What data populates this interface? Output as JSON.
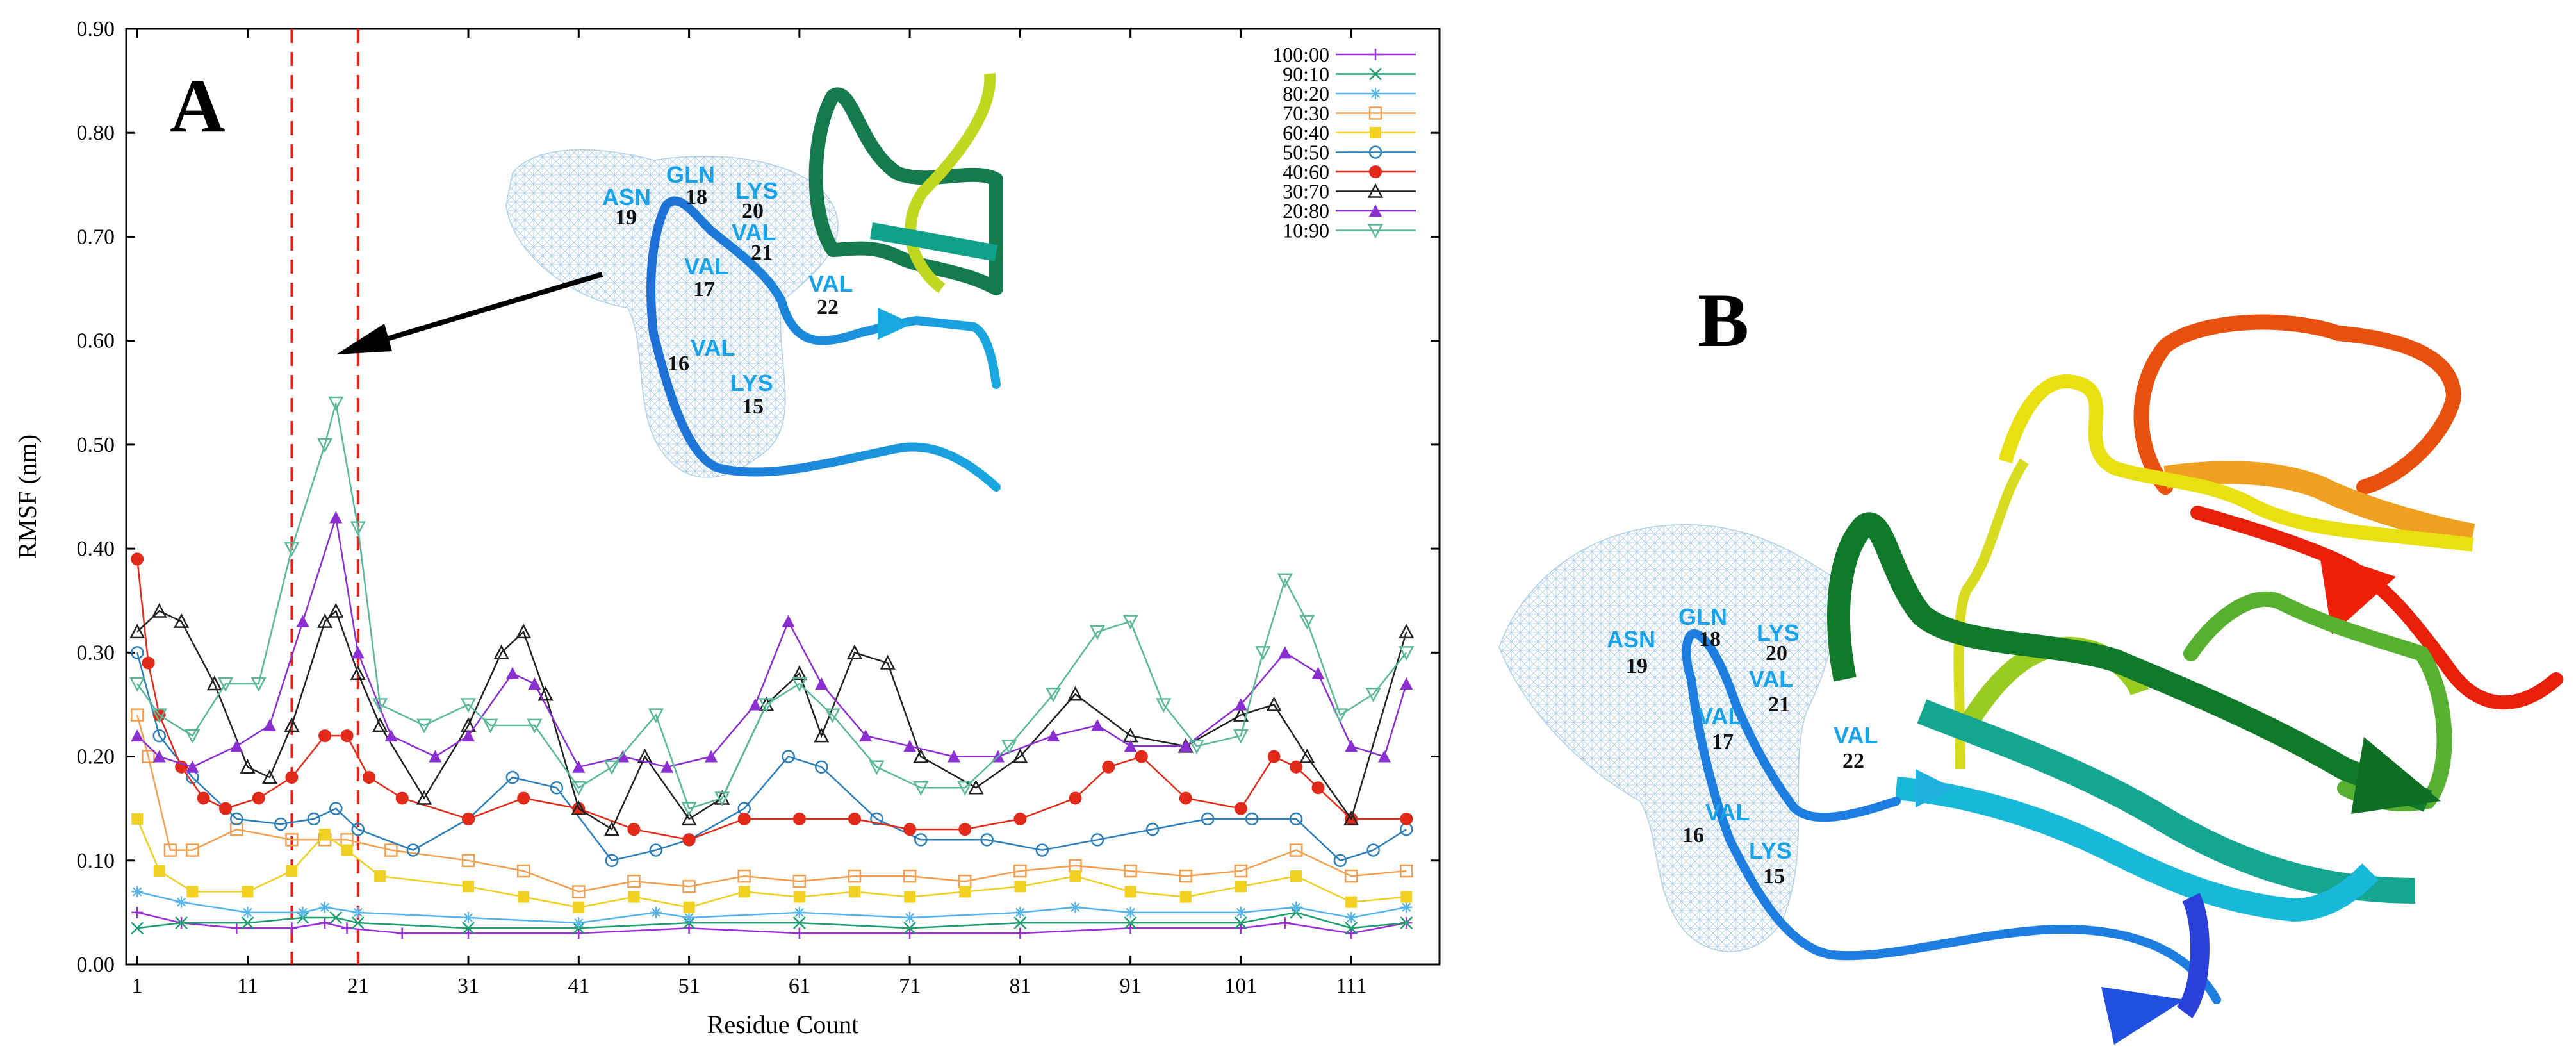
{
  "chart_data": {
    "type": "line",
    "title": "",
    "xlabel": "Residue Count",
    "ylabel": "RMSF (nm)",
    "xlim": [
      0,
      119
    ],
    "ylim": [
      0,
      0.9
    ],
    "xticks": [
      1,
      11,
      21,
      31,
      41,
      51,
      61,
      71,
      81,
      91,
      101,
      111
    ],
    "yticks": [
      "0.00",
      "0.10",
      "0.20",
      "0.30",
      "0.40",
      "0.50",
      "0.60",
      "0.70",
      "0.80",
      "0.90"
    ],
    "ytick_values": [
      0,
      0.1,
      0.2,
      0.3,
      0.4,
      0.5,
      0.6,
      0.7,
      0.8,
      0.9
    ],
    "grid": false,
    "legend_position": "top-right",
    "highlight_lines": [
      15,
      21
    ],
    "series": [
      {
        "name": "100:00",
        "color": "#9b30d9",
        "marker": "plus",
        "points": [
          [
            1,
            0.05
          ],
          [
            5,
            0.04
          ],
          [
            10,
            0.035
          ],
          [
            15,
            0.035
          ],
          [
            18,
            0.04
          ],
          [
            20,
            0.035
          ],
          [
            25,
            0.03
          ],
          [
            31,
            0.03
          ],
          [
            41,
            0.03
          ],
          [
            51,
            0.035
          ],
          [
            61,
            0.03
          ],
          [
            71,
            0.03
          ],
          [
            81,
            0.03
          ],
          [
            91,
            0.035
          ],
          [
            101,
            0.035
          ],
          [
            105,
            0.04
          ],
          [
            111,
            0.03
          ],
          [
            116,
            0.04
          ]
        ]
      },
      {
        "name": "90:10",
        "color": "#1f9e6e",
        "marker": "cross",
        "points": [
          [
            1,
            0.035
          ],
          [
            5,
            0.04
          ],
          [
            11,
            0.04
          ],
          [
            16,
            0.045
          ],
          [
            19,
            0.045
          ],
          [
            21,
            0.04
          ],
          [
            31,
            0.035
          ],
          [
            41,
            0.035
          ],
          [
            51,
            0.04
          ],
          [
            61,
            0.04
          ],
          [
            71,
            0.035
          ],
          [
            81,
            0.04
          ],
          [
            91,
            0.04
          ],
          [
            101,
            0.04
          ],
          [
            106,
            0.05
          ],
          [
            111,
            0.035
          ],
          [
            116,
            0.04
          ]
        ]
      },
      {
        "name": "80:20",
        "color": "#56b4e9",
        "marker": "star",
        "points": [
          [
            1,
            0.07
          ],
          [
            5,
            0.06
          ],
          [
            11,
            0.05
          ],
          [
            16,
            0.05
          ],
          [
            18,
            0.055
          ],
          [
            21,
            0.05
          ],
          [
            31,
            0.045
          ],
          [
            41,
            0.04
          ],
          [
            48,
            0.05
          ],
          [
            51,
            0.045
          ],
          [
            61,
            0.05
          ],
          [
            71,
            0.045
          ],
          [
            81,
            0.05
          ],
          [
            86,
            0.055
          ],
          [
            91,
            0.05
          ],
          [
            101,
            0.05
          ],
          [
            106,
            0.055
          ],
          [
            111,
            0.045
          ],
          [
            116,
            0.055
          ]
        ]
      },
      {
        "name": "70:30",
        "color": "#f0a050",
        "marker": "open-square",
        "points": [
          [
            1,
            0.24
          ],
          [
            2,
            0.2
          ],
          [
            4,
            0.11
          ],
          [
            6,
            0.11
          ],
          [
            10,
            0.13
          ],
          [
            15,
            0.12
          ],
          [
            18,
            0.12
          ],
          [
            20,
            0.12
          ],
          [
            24,
            0.11
          ],
          [
            31,
            0.1
          ],
          [
            36,
            0.09
          ],
          [
            41,
            0.07
          ],
          [
            46,
            0.08
          ],
          [
            51,
            0.075
          ],
          [
            56,
            0.085
          ],
          [
            61,
            0.08
          ],
          [
            66,
            0.085
          ],
          [
            71,
            0.085
          ],
          [
            76,
            0.08
          ],
          [
            81,
            0.09
          ],
          [
            86,
            0.095
          ],
          [
            91,
            0.09
          ],
          [
            96,
            0.085
          ],
          [
            101,
            0.09
          ],
          [
            106,
            0.11
          ],
          [
            111,
            0.085
          ],
          [
            116,
            0.09
          ]
        ]
      },
      {
        "name": "60:40",
        "color": "#f0d020",
        "marker": "filled-square",
        "points": [
          [
            1,
            0.14
          ],
          [
            3,
            0.09
          ],
          [
            6,
            0.07
          ],
          [
            11,
            0.07
          ],
          [
            15,
            0.09
          ],
          [
            18,
            0.125
          ],
          [
            20,
            0.11
          ],
          [
            23,
            0.085
          ],
          [
            31,
            0.075
          ],
          [
            36,
            0.065
          ],
          [
            41,
            0.055
          ],
          [
            46,
            0.065
          ],
          [
            51,
            0.055
          ],
          [
            56,
            0.07
          ],
          [
            61,
            0.065
          ],
          [
            66,
            0.07
          ],
          [
            71,
            0.065
          ],
          [
            76,
            0.07
          ],
          [
            81,
            0.075
          ],
          [
            86,
            0.085
          ],
          [
            91,
            0.07
          ],
          [
            96,
            0.065
          ],
          [
            101,
            0.075
          ],
          [
            106,
            0.085
          ],
          [
            111,
            0.06
          ],
          [
            116,
            0.065
          ]
        ]
      },
      {
        "name": "50:50",
        "color": "#2c7fb8",
        "marker": "open-circle",
        "points": [
          [
            1,
            0.3
          ],
          [
            3,
            0.22
          ],
          [
            6,
            0.18
          ],
          [
            10,
            0.14
          ],
          [
            14,
            0.135
          ],
          [
            17,
            0.14
          ],
          [
            19,
            0.15
          ],
          [
            21,
            0.13
          ],
          [
            26,
            0.11
          ],
          [
            31,
            0.14
          ],
          [
            35,
            0.18
          ],
          [
            39,
            0.17
          ],
          [
            44,
            0.1
          ],
          [
            48,
            0.11
          ],
          [
            51,
            0.12
          ],
          [
            56,
            0.15
          ],
          [
            60,
            0.2
          ],
          [
            63,
            0.19
          ],
          [
            68,
            0.14
          ],
          [
            72,
            0.12
          ],
          [
            78,
            0.12
          ],
          [
            83,
            0.11
          ],
          [
            88,
            0.12
          ],
          [
            93,
            0.13
          ],
          [
            98,
            0.14
          ],
          [
            102,
            0.14
          ],
          [
            106,
            0.14
          ],
          [
            110,
            0.1
          ],
          [
            113,
            0.11
          ],
          [
            116,
            0.13
          ]
        ]
      },
      {
        "name": "40:60",
        "color": "#e22a1a",
        "marker": "filled-circle",
        "points": [
          [
            1,
            0.39
          ],
          [
            2,
            0.29
          ],
          [
            3,
            0.24
          ],
          [
            5,
            0.19
          ],
          [
            7,
            0.16
          ],
          [
            9,
            0.15
          ],
          [
            12,
            0.16
          ],
          [
            15,
            0.18
          ],
          [
            18,
            0.22
          ],
          [
            20,
            0.22
          ],
          [
            22,
            0.18
          ],
          [
            25,
            0.16
          ],
          [
            31,
            0.14
          ],
          [
            36,
            0.16
          ],
          [
            41,
            0.15
          ],
          [
            46,
            0.13
          ],
          [
            51,
            0.12
          ],
          [
            56,
            0.14
          ],
          [
            61,
            0.14
          ],
          [
            66,
            0.14
          ],
          [
            71,
            0.13
          ],
          [
            76,
            0.13
          ],
          [
            81,
            0.14
          ],
          [
            86,
            0.16
          ],
          [
            89,
            0.19
          ],
          [
            92,
            0.2
          ],
          [
            96,
            0.16
          ],
          [
            101,
            0.15
          ],
          [
            104,
            0.2
          ],
          [
            106,
            0.19
          ],
          [
            108,
            0.17
          ],
          [
            111,
            0.14
          ],
          [
            116,
            0.14
          ]
        ]
      },
      {
        "name": "30:70",
        "color": "#222222",
        "marker": "open-triangle",
        "points": [
          [
            1,
            0.32
          ],
          [
            3,
            0.34
          ],
          [
            5,
            0.33
          ],
          [
            8,
            0.27
          ],
          [
            11,
            0.19
          ],
          [
            13,
            0.18
          ],
          [
            15,
            0.23
          ],
          [
            18,
            0.33
          ],
          [
            19,
            0.34
          ],
          [
            21,
            0.28
          ],
          [
            23,
            0.23
          ],
          [
            27,
            0.16
          ],
          [
            31,
            0.23
          ],
          [
            34,
            0.3
          ],
          [
            36,
            0.32
          ],
          [
            38,
            0.26
          ],
          [
            41,
            0.15
          ],
          [
            44,
            0.13
          ],
          [
            47,
            0.2
          ],
          [
            51,
            0.14
          ],
          [
            54,
            0.16
          ],
          [
            58,
            0.25
          ],
          [
            61,
            0.28
          ],
          [
            63,
            0.22
          ],
          [
            66,
            0.3
          ],
          [
            69,
            0.29
          ],
          [
            72,
            0.2
          ],
          [
            77,
            0.17
          ],
          [
            81,
            0.2
          ],
          [
            86,
            0.26
          ],
          [
            91,
            0.22
          ],
          [
            96,
            0.21
          ],
          [
            101,
            0.24
          ],
          [
            104,
            0.25
          ],
          [
            107,
            0.2
          ],
          [
            111,
            0.14
          ],
          [
            116,
            0.32
          ]
        ]
      },
      {
        "name": "20:80",
        "color": "#8b2fd0",
        "marker": "filled-triangle",
        "points": [
          [
            1,
            0.22
          ],
          [
            3,
            0.2
          ],
          [
            6,
            0.19
          ],
          [
            10,
            0.21
          ],
          [
            13,
            0.23
          ],
          [
            16,
            0.33
          ],
          [
            19,
            0.43
          ],
          [
            21,
            0.3
          ],
          [
            24,
            0.22
          ],
          [
            28,
            0.2
          ],
          [
            31,
            0.22
          ],
          [
            35,
            0.28
          ],
          [
            37,
            0.27
          ],
          [
            41,
            0.19
          ],
          [
            45,
            0.2
          ],
          [
            49,
            0.19
          ],
          [
            53,
            0.2
          ],
          [
            57,
            0.25
          ],
          [
            60,
            0.33
          ],
          [
            63,
            0.27
          ],
          [
            67,
            0.22
          ],
          [
            71,
            0.21
          ],
          [
            75,
            0.2
          ],
          [
            79,
            0.2
          ],
          [
            84,
            0.22
          ],
          [
            88,
            0.23
          ],
          [
            91,
            0.21
          ],
          [
            96,
            0.21
          ],
          [
            101,
            0.25
          ],
          [
            105,
            0.3
          ],
          [
            108,
            0.28
          ],
          [
            111,
            0.21
          ],
          [
            114,
            0.2
          ],
          [
            116,
            0.27
          ]
        ]
      },
      {
        "name": "10:90",
        "color": "#5bb89a",
        "marker": "open-triangle-down",
        "points": [
          [
            1,
            0.27
          ],
          [
            3,
            0.24
          ],
          [
            6,
            0.22
          ],
          [
            9,
            0.27
          ],
          [
            12,
            0.27
          ],
          [
            15,
            0.4
          ],
          [
            18,
            0.5
          ],
          [
            19,
            0.54
          ],
          [
            21,
            0.42
          ],
          [
            23,
            0.25
          ],
          [
            27,
            0.23
          ],
          [
            31,
            0.25
          ],
          [
            33,
            0.23
          ],
          [
            37,
            0.23
          ],
          [
            41,
            0.17
          ],
          [
            44,
            0.19
          ],
          [
            48,
            0.24
          ],
          [
            51,
            0.15
          ],
          [
            54,
            0.16
          ],
          [
            58,
            0.25
          ],
          [
            61,
            0.27
          ],
          [
            64,
            0.24
          ],
          [
            68,
            0.19
          ],
          [
            72,
            0.17
          ],
          [
            76,
            0.17
          ],
          [
            80,
            0.21
          ],
          [
            84,
            0.26
          ],
          [
            88,
            0.32
          ],
          [
            91,
            0.33
          ],
          [
            94,
            0.25
          ],
          [
            97,
            0.21
          ],
          [
            101,
            0.22
          ],
          [
            103,
            0.3
          ],
          [
            105,
            0.37
          ],
          [
            107,
            0.33
          ],
          [
            110,
            0.24
          ],
          [
            113,
            0.26
          ],
          [
            116,
            0.3
          ]
        ]
      }
    ]
  },
  "panel_a": {
    "label": "A",
    "residues": [
      {
        "name": "ASN",
        "num": "19"
      },
      {
        "name": "GLN",
        "num": "18"
      },
      {
        "name": "LYS",
        "num": "20"
      },
      {
        "name": "VAL",
        "num": "21"
      },
      {
        "name": "VAL",
        "num": "17"
      },
      {
        "name": "VAL",
        "num": "22"
      },
      {
        "name": "VAL",
        "num": "16"
      },
      {
        "name": "LYS",
        "num": "15"
      }
    ]
  },
  "panel_b": {
    "label": "B",
    "residues": [
      {
        "name": "ASN",
        "num": "19"
      },
      {
        "name": "GLN",
        "num": "18"
      },
      {
        "name": "LYS",
        "num": "20"
      },
      {
        "name": "VAL",
        "num": "21"
      },
      {
        "name": "VAL",
        "num": "17"
      },
      {
        "name": "VAL",
        "num": "22"
      },
      {
        "name": "VAL",
        "num": "16"
      },
      {
        "name": "LYS",
        "num": "15"
      }
    ]
  }
}
